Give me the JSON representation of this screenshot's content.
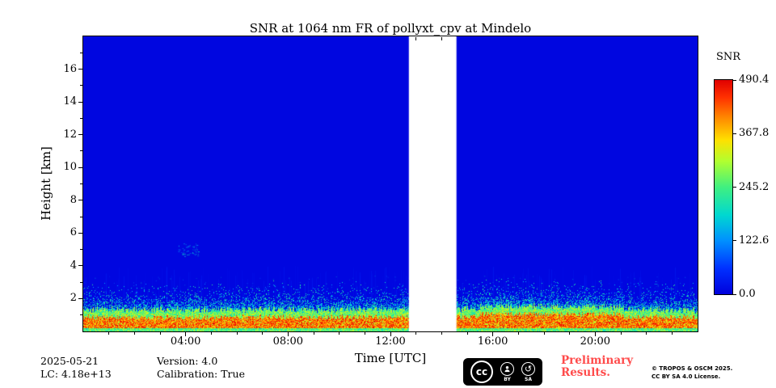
{
  "chart_data": {
    "type": "heatmap",
    "title": "SNR at 1064 nm FR of pollyxt_cpv at Mindelo",
    "xlabel": "Time [UTC]",
    "ylabel": "Height [km]",
    "xlim_hours": [
      0,
      24
    ],
    "ylim_km": [
      0,
      18
    ],
    "x_ticks": [
      {
        "hour": 4,
        "label": "04:00"
      },
      {
        "hour": 8,
        "label": "08:00"
      },
      {
        "hour": 12,
        "label": "12:00"
      },
      {
        "hour": 16,
        "label": "16:00"
      },
      {
        "hour": 20,
        "label": "20:00"
      }
    ],
    "y_ticks": [
      {
        "km": 2,
        "label": "2"
      },
      {
        "km": 4,
        "label": "4"
      },
      {
        "km": 6,
        "label": "6"
      },
      {
        "km": 8,
        "label": "8"
      },
      {
        "km": 10,
        "label": "10"
      },
      {
        "km": 12,
        "label": "12"
      },
      {
        "km": 14,
        "label": "14"
      },
      {
        "km": 16,
        "label": "16"
      }
    ],
    "colorbar": {
      "title": "SNR",
      "min": 0.0,
      "max": 490.4,
      "ticks": [
        {
          "value": 490.4,
          "label": "490.4"
        },
        {
          "value": 367.8,
          "label": "367.8"
        },
        {
          "value": 245.2,
          "label": "245.2"
        },
        {
          "value": 122.6,
          "label": "122.6"
        },
        {
          "value": 0.0,
          "label": "0.0"
        }
      ]
    },
    "colormap_stops": [
      {
        "t": 0.0,
        "color": "#0000dc"
      },
      {
        "t": 0.12,
        "color": "#0030ff"
      },
      {
        "t": 0.25,
        "color": "#0090ff"
      },
      {
        "t": 0.37,
        "color": "#00d8d0"
      },
      {
        "t": 0.5,
        "color": "#40f080"
      },
      {
        "t": 0.62,
        "color": "#b0ff30"
      },
      {
        "t": 0.72,
        "color": "#ffe000"
      },
      {
        "t": 0.82,
        "color": "#ff8c00"
      },
      {
        "t": 0.92,
        "color": "#ff3000"
      },
      {
        "t": 1.0,
        "color": "#e00000"
      }
    ],
    "background_snr": 5,
    "data_gap_utc_hours": [
      12.72,
      14.58
    ],
    "surface_layer": {
      "green_base_top_km": 0.18,
      "red_top_km": 0.85,
      "mix_top_extra_km": 0.35,
      "speckle_decay_km": 0.45,
      "enhanced_utc_hours": [
        15.5,
        21.0
      ],
      "peak_snr": 490
    },
    "elevated_layer": {
      "utc_hours": [
        3.7,
        4.5
      ],
      "height_km": [
        4.6,
        5.4
      ],
      "snr_approx": 110
    },
    "summary": "Near-zero SNR (blue) above ~2 km all day; strong boundary-layer echo up to ~1.3 km with SNR up to ~490; white data gap ~12:43-14:35 UTC; faint elevated layer near 5 km around 04:00-04:30 UTC."
  },
  "footer": {
    "date": "2025-05-21",
    "lc": "LC: 4.18e+13",
    "version": "Version: 4.0",
    "calibration": "Calibration: True"
  },
  "license": {
    "cc": "cc",
    "by": "BY",
    "sa": "SA",
    "preliminary_line1": "Preliminary",
    "preliminary_line2": "Results.",
    "preliminary_color": "#ff4b4b",
    "copyright_line1": "© TROPOS & OSCM 2025.",
    "copyright_line2": "CC BY SA 4.0 License."
  }
}
